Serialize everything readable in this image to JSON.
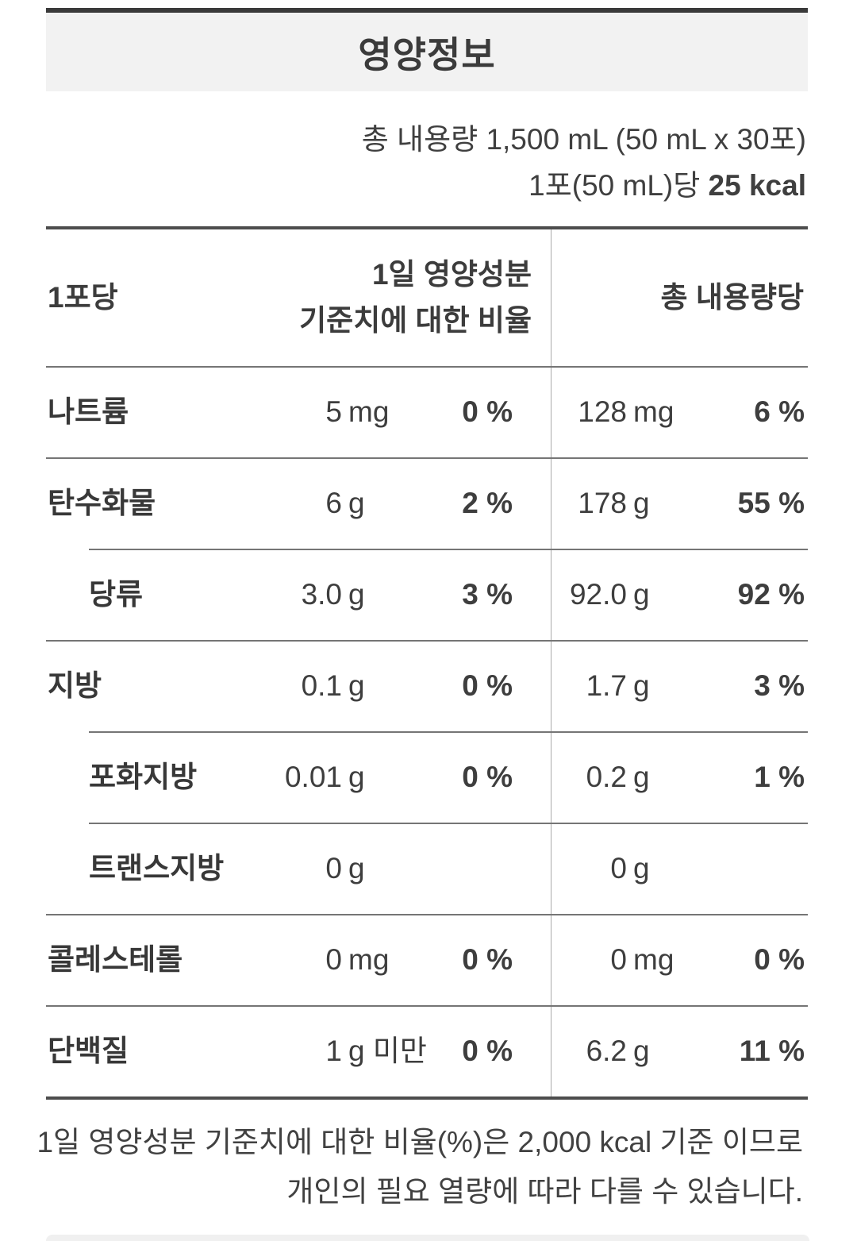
{
  "colors": {
    "accent_bar": "#3a3a3a",
    "title_box_bg": "#f2f2f2",
    "text": "#3d3d3d",
    "thick_border": "#4d4d4d",
    "thin_divider": "#757575"
  },
  "header": {
    "title": "영양정보",
    "total_volume": "총 내용량 1,500 mL (50 mL x 30포)",
    "per_serving_prefix": "1포(50 mL)당 ",
    "per_serving_kcal": "25 kcal"
  },
  "table": {
    "header": {
      "per_pack": "1포당",
      "daily_value_line1": "1일 영양성분",
      "daily_value_line2": "기준치에 대한 비율",
      "total": "총 내용량당"
    },
    "rows": [
      {
        "name": "나트륨",
        "indent": false,
        "divider": "full",
        "pack_amount": "5",
        "pack_unit": "mg",
        "pack_dv": "0 %",
        "total_amount": "128",
        "total_unit": "mg",
        "total_dv": "6 %"
      },
      {
        "name": "탄수화물",
        "indent": false,
        "divider": "full",
        "pack_amount": "6",
        "pack_unit": "g",
        "pack_dv": "2 %",
        "total_amount": "178",
        "total_unit": "g",
        "total_dv": "55 %"
      },
      {
        "name": "당류",
        "indent": true,
        "divider": "indent",
        "pack_amount": "3.0",
        "pack_unit": "g",
        "pack_dv": "3 %",
        "total_amount": "92.0",
        "total_unit": "g",
        "total_dv": "92 %"
      },
      {
        "name": "지방",
        "indent": false,
        "divider": "full",
        "pack_amount": "0.1",
        "pack_unit": "g",
        "pack_dv": "0 %",
        "total_amount": "1.7",
        "total_unit": "g",
        "total_dv": "3 %"
      },
      {
        "name": "포화지방",
        "indent": true,
        "divider": "indent",
        "pack_amount": "0.01",
        "pack_unit": "g",
        "pack_dv": "0 %",
        "total_amount": "0.2",
        "total_unit": "g",
        "total_dv": "1 %"
      },
      {
        "name": "트랜스지방",
        "indent": true,
        "divider": "indent",
        "pack_amount": "0",
        "pack_unit": "g",
        "pack_dv": "",
        "total_amount": "0",
        "total_unit": "g",
        "total_dv": ""
      },
      {
        "name": "콜레스테롤",
        "indent": false,
        "divider": "full",
        "pack_amount": "0",
        "pack_unit": "mg",
        "pack_dv": "0 %",
        "total_amount": "0",
        "total_unit": "mg",
        "total_dv": "0 %"
      },
      {
        "name": "단백질",
        "indent": false,
        "divider": "full",
        "pack_amount": "1",
        "pack_unit": "g 미만",
        "pack_dv": "0 %",
        "total_amount": "6.2",
        "total_unit": "g",
        "total_dv": "11 %"
      }
    ]
  },
  "footer": {
    "line1": "1일 영양성분 기준치에 대한 비율(%)은 2,000 kcal 기준 이므로",
    "line2": "개인의 필요 열량에 따라 다를 수 있습니다."
  }
}
